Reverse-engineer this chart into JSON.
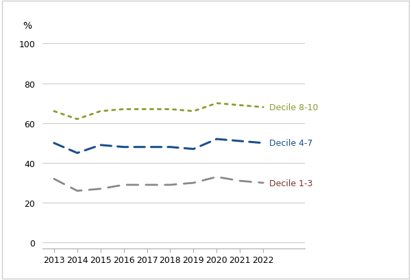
{
  "years": [
    2013,
    2014,
    2015,
    2016,
    2017,
    2018,
    2019,
    2020,
    2021,
    2022
  ],
  "decile_8_10": [
    66,
    62,
    66,
    67,
    67,
    67,
    66,
    70,
    69,
    68
  ],
  "decile_4_7": [
    50,
    45,
    49,
    48,
    48,
    48,
    47,
    52,
    51,
    50
  ],
  "decile_1_3": [
    32,
    26,
    27,
    29,
    29,
    29,
    30,
    33,
    31,
    30
  ],
  "line_colors": {
    "decile_8_10": "#8b9a2a",
    "decile_4_7": "#1a4f8a",
    "decile_1_3": "#888888"
  },
  "line_styles": {
    "decile_8_10": "dotted",
    "decile_4_7": "dashed",
    "decile_1_3": "dashed"
  },
  "line_widths": {
    "decile_8_10": 2.0,
    "decile_4_7": 2.2,
    "decile_1_3": 2.0
  },
  "dash_patterns": {
    "decile_8_10": [
      1.5,
      2.5
    ],
    "decile_4_7": [
      5,
      3
    ],
    "decile_1_3": [
      6,
      4
    ]
  },
  "labels": {
    "decile_8_10": "Decile 8-10",
    "decile_4_7": "Decile 4-7",
    "decile_1_3": "Decile 1-3"
  },
  "label_colors": {
    "decile_8_10": "#8b9a2a",
    "decile_4_7": "#1a4f8a",
    "decile_1_3": "#7a3030"
  },
  "ylabel": "%",
  "yticks": [
    0,
    20,
    40,
    60,
    80,
    100
  ],
  "ylim": [
    -3,
    107
  ],
  "xlim_left": 2012.5,
  "xlim_right": 2023.8,
  "background_color": "#ffffff",
  "plot_bg_color": "#ffffff",
  "grid_color": "#cccccc",
  "border_color": "#cccccc",
  "font_size_ylabel": 10,
  "font_size_tick": 9,
  "font_size_annotation": 9
}
